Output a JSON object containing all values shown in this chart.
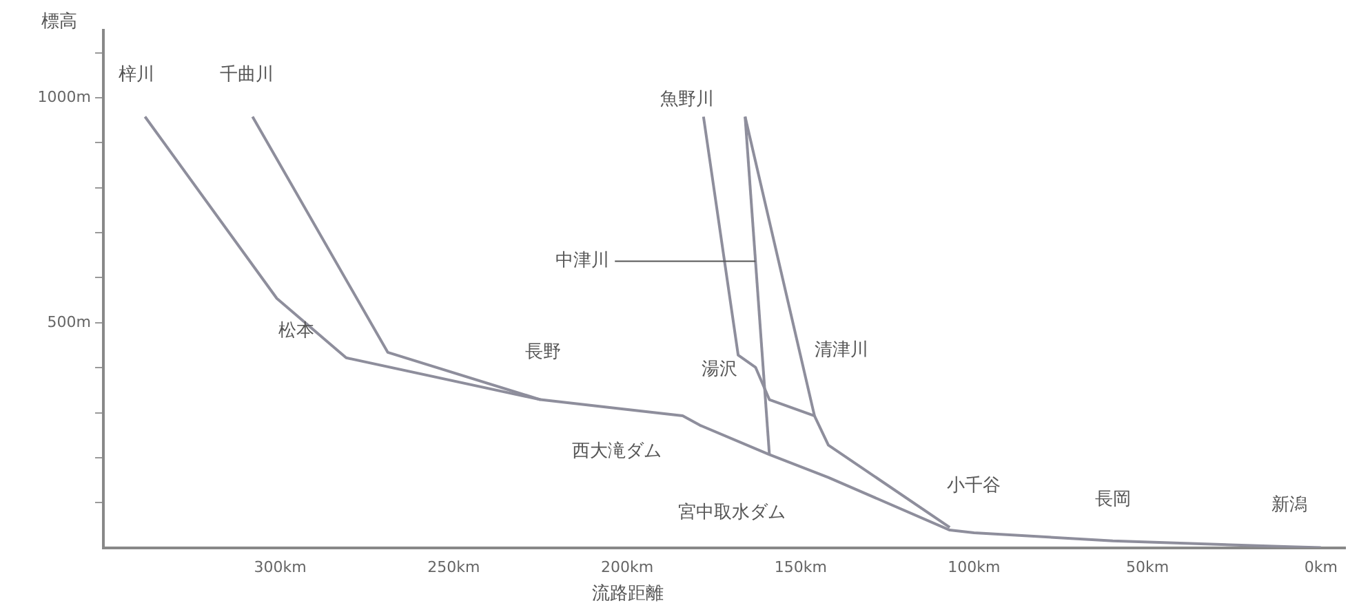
{
  "chart_data": {
    "type": "line",
    "xlabel": "流路距離",
    "ylabel": "標高",
    "series": [
      {
        "name": "梓川",
        "color": "#8e8e9c",
        "x": [
          339,
          301,
          281,
          225
        ],
        "values": [
          958,
          554,
          422,
          329
        ]
      },
      {
        "name": "千曲川",
        "color": "#8e8e9c",
        "x": [
          308,
          269,
          225,
          202,
          184,
          179,
          159,
          142,
          107,
          100,
          60,
          9,
          0
        ],
        "values": [
          958,
          434,
          329,
          309,
          293,
          272,
          207,
          156,
          39,
          33,
          15,
          2,
          0
        ]
      },
      {
        "name": "魚野川",
        "color": "#8e8e9c",
        "x": [
          178,
          168,
          163,
          159,
          146,
          142,
          107
        ],
        "values": [
          958,
          428,
          401,
          329,
          293,
          228,
          45
        ]
      },
      {
        "name": "中津川",
        "color": "#8e8e9c",
        "x": [
          166,
          159
        ],
        "values": [
          958,
          207
        ]
      },
      {
        "name": "清津川",
        "color": "#8e8e9c",
        "x": [
          166,
          146
        ],
        "values": [
          958,
          293
        ]
      }
    ],
    "annotations": [
      {
        "text": "松本",
        "x": 301,
        "y": 554
      },
      {
        "text": "長野",
        "x": 225,
        "y": 329
      },
      {
        "text": "西大滝ダム",
        "x": 184,
        "y": 293
      },
      {
        "text": "宮中取水ダム",
        "x": 142,
        "y": 156
      },
      {
        "text": "湯沢",
        "x": 163,
        "y": 401
      },
      {
        "text": "小千谷",
        "x": 100,
        "y": 33
      },
      {
        "text": "長岡",
        "x": 60,
        "y": 15
      },
      {
        "text": "新潟",
        "x": 9,
        "y": 2
      }
    ],
    "xlim": [
      351,
      -7
    ],
    "ylim": [
      0,
      1150
    ],
    "xticks": [
      {
        "value": 300,
        "label": "300km"
      },
      {
        "value": 250,
        "label": "250km"
      },
      {
        "value": 200,
        "label": "200km"
      },
      {
        "value": 150,
        "label": "150km"
      },
      {
        "value": 100,
        "label": "100km"
      },
      {
        "value": 50,
        "label": "50km"
      },
      {
        "value": 0,
        "label": "0km"
      }
    ],
    "yticks": [
      {
        "value": 100,
        "label": null
      },
      {
        "value": 200,
        "label": null
      },
      {
        "value": 300,
        "label": null
      },
      {
        "value": 400,
        "label": null
      },
      {
        "value": 500,
        "label": "500m"
      },
      {
        "value": 600,
        "label": null
      },
      {
        "value": 700,
        "label": null
      },
      {
        "value": 800,
        "label": null
      },
      {
        "value": 900,
        "label": null
      },
      {
        "value": 1000,
        "label": "1000m"
      },
      {
        "value": 1100,
        "label": null
      }
    ],
    "grid": false,
    "legend": false,
    "marker": "none",
    "line_style": "solid"
  }
}
